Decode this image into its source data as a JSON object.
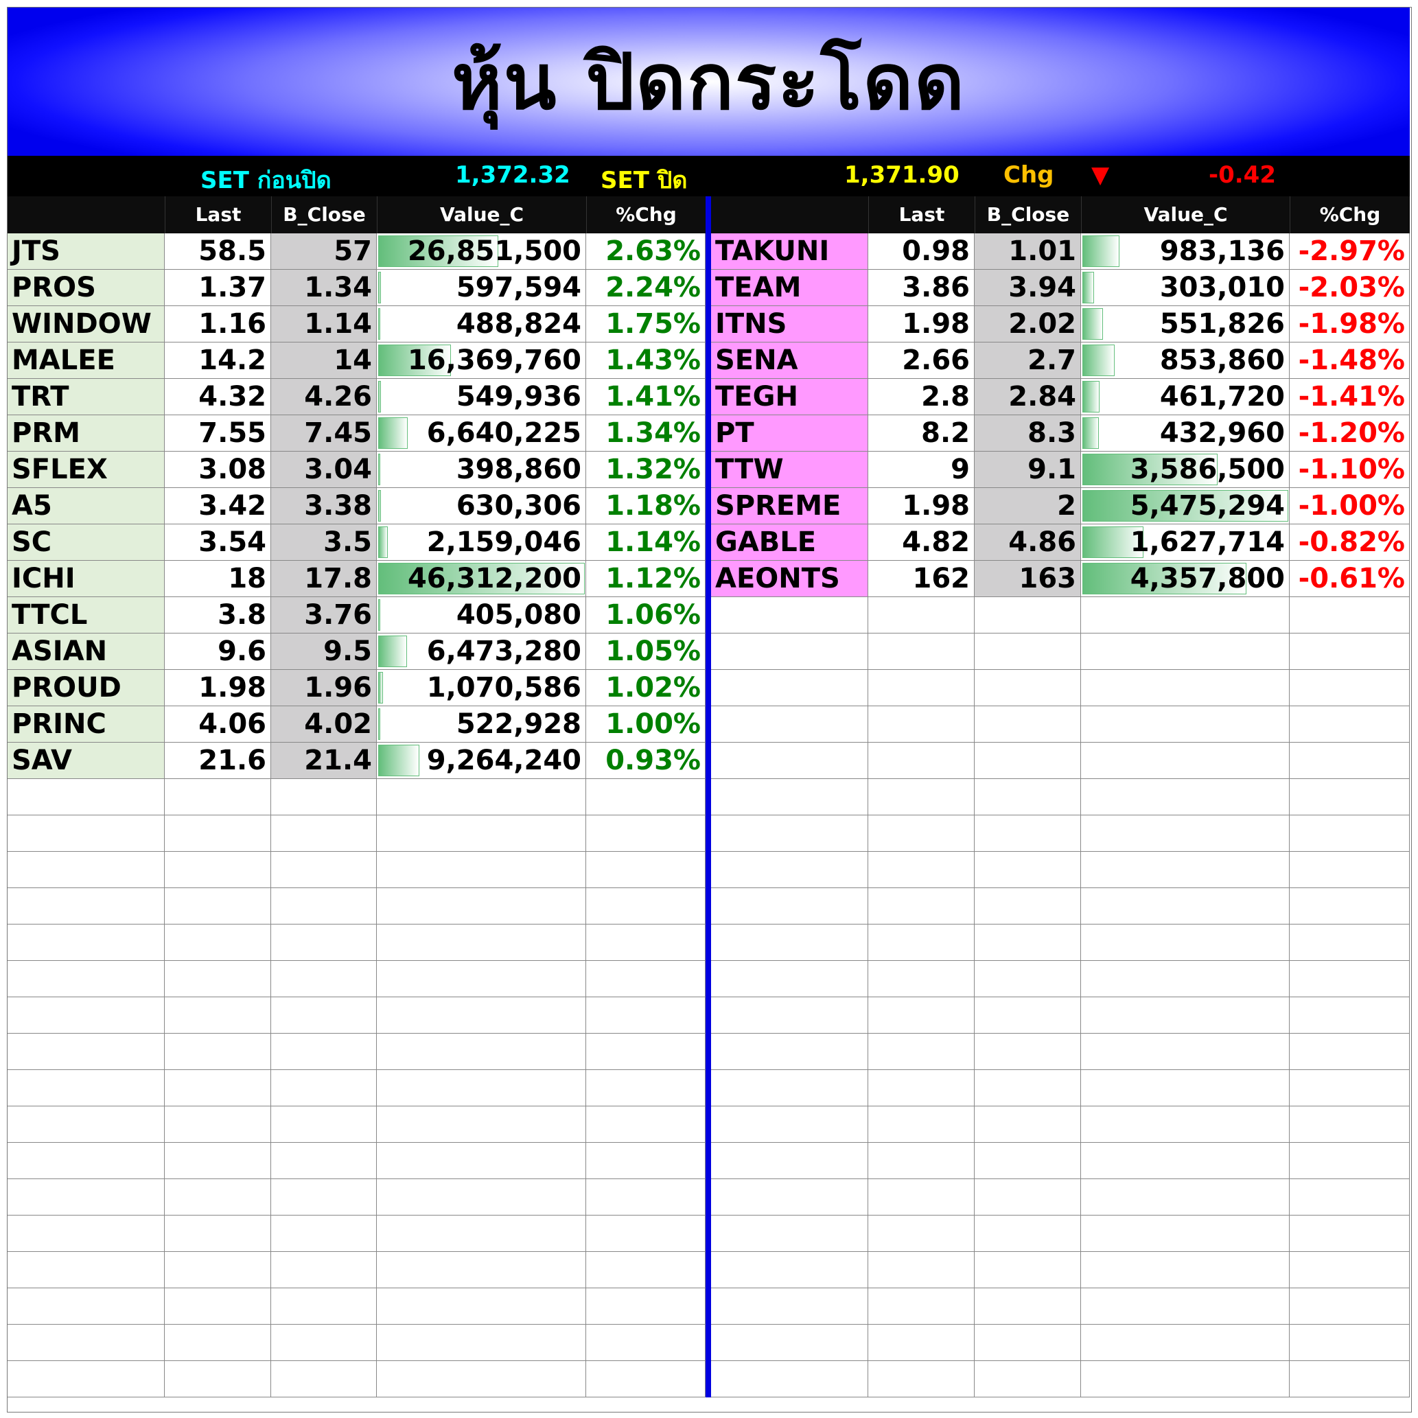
{
  "title": "หุ้น ปิดกระโดด",
  "infobar": {
    "set_before_label": "SET ก่อนปิด",
    "set_before_value": "1,372.32",
    "set_close_label": "SET  ปิด",
    "set_close_value": "1,371.90",
    "chg_label": "Chg",
    "chg_arrow": "▼",
    "chg_value": "-0.42"
  },
  "colors": {
    "up": "#008000",
    "down": "#ff0000",
    "gainer_name_bg": "#e2efda",
    "loser_name_bg": "#ff99ff",
    "bclose_bg": "#d0cfd0",
    "databar": "#63be7b",
    "title_blue": "#0000ee"
  },
  "headers": [
    "",
    "Last",
    "B_Close",
    "Value_C",
    "%Chg"
  ],
  "gainers": [
    {
      "symbol": "JTS",
      "last": "58.5",
      "bclose": "57",
      "value": "26,851,500",
      "pct": "2.63%"
    },
    {
      "symbol": "PROS",
      "last": "1.37",
      "bclose": "1.34",
      "value": "597,594",
      "pct": "2.24%"
    },
    {
      "symbol": "WINDOW",
      "last": "1.16",
      "bclose": "1.14",
      "value": "488,824",
      "pct": "1.75%"
    },
    {
      "symbol": "MALEE",
      "last": "14.2",
      "bclose": "14",
      "value": "16,369,760",
      "pct": "1.43%"
    },
    {
      "symbol": "TRT",
      "last": "4.32",
      "bclose": "4.26",
      "value": "549,936",
      "pct": "1.41%"
    },
    {
      "symbol": "PRM",
      "last": "7.55",
      "bclose": "7.45",
      "value": "6,640,225",
      "pct": "1.34%"
    },
    {
      "symbol": "SFLEX",
      "last": "3.08",
      "bclose": "3.04",
      "value": "398,860",
      "pct": "1.32%"
    },
    {
      "symbol": "A5",
      "last": "3.42",
      "bclose": "3.38",
      "value": "630,306",
      "pct": "1.18%"
    },
    {
      "symbol": "SC",
      "last": "3.54",
      "bclose": "3.5",
      "value": "2,159,046",
      "pct": "1.14%"
    },
    {
      "symbol": "ICHI",
      "last": "18",
      "bclose": "17.8",
      "value": "46,312,200",
      "pct": "1.12%"
    },
    {
      "symbol": "TTCL",
      "last": "3.8",
      "bclose": "3.76",
      "value": "405,080",
      "pct": "1.06%"
    },
    {
      "symbol": "ASIAN",
      "last": "9.6",
      "bclose": "9.5",
      "value": "6,473,280",
      "pct": "1.05%"
    },
    {
      "symbol": "PROUD",
      "last": "1.98",
      "bclose": "1.96",
      "value": "1,070,586",
      "pct": "1.02%"
    },
    {
      "symbol": "PRINC",
      "last": "4.06",
      "bclose": "4.02",
      "value": "522,928",
      "pct": "1.00%"
    },
    {
      "symbol": "SAV",
      "last": "21.6",
      "bclose": "21.4",
      "value": "9,264,240",
      "pct": "0.93%"
    }
  ],
  "losers": [
    {
      "symbol": "TAKUNI",
      "last": "0.98",
      "bclose": "1.01",
      "value": "983,136",
      "pct": "-2.97%"
    },
    {
      "symbol": "TEAM",
      "last": "3.86",
      "bclose": "3.94",
      "value": "303,010",
      "pct": "-2.03%"
    },
    {
      "symbol": "ITNS",
      "last": "1.98",
      "bclose": "2.02",
      "value": "551,826",
      "pct": "-1.98%"
    },
    {
      "symbol": "SENA",
      "last": "2.66",
      "bclose": "2.7",
      "value": "853,860",
      "pct": "-1.48%"
    },
    {
      "symbol": "TEGH",
      "last": "2.8",
      "bclose": "2.84",
      "value": "461,720",
      "pct": "-1.41%"
    },
    {
      "symbol": "PT",
      "last": "8.2",
      "bclose": "8.3",
      "value": "432,960",
      "pct": "-1.20%"
    },
    {
      "symbol": "TTW",
      "last": "9",
      "bclose": "9.1",
      "value": "3,586,500",
      "pct": "-1.10%"
    },
    {
      "symbol": "SPREME",
      "last": "1.98",
      "bclose": "2",
      "value": "5,475,294",
      "pct": "-1.00%"
    },
    {
      "symbol": "GABLE",
      "last": "4.82",
      "bclose": "4.86",
      "value": "1,627,714",
      "pct": "-0.82%"
    },
    {
      "symbol": "AEONTS",
      "last": "162",
      "bclose": "163",
      "value": "4,357,800",
      "pct": "-0.61%"
    }
  ]
}
